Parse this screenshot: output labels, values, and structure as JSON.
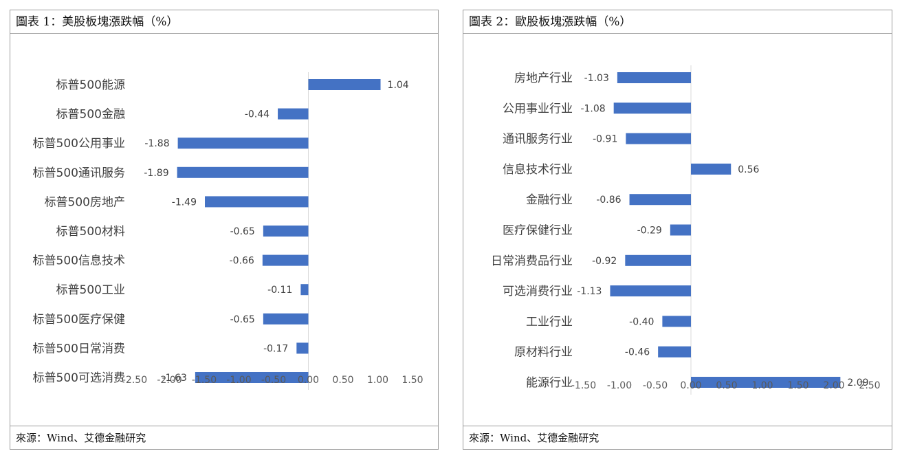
{
  "charts": [
    {
      "title": "圖表 1：美股板塊漲跌幅（%）",
      "source": "來源：Wind、艾德金融研究",
      "chart_data": {
        "type": "bar",
        "orientation": "horizontal",
        "categories": [
          "标普500能源",
          "标普500金融",
          "标普500公用事业",
          "标普500通讯服务",
          "标普500房地产",
          "标普500材料",
          "标普500信息技术",
          "标普500工业",
          "标普500医疗保健",
          "标普500日常消费",
          "标普500可选消费"
        ],
        "values": [
          1.04,
          -0.44,
          -1.88,
          -1.89,
          -1.49,
          -0.65,
          -0.66,
          -0.11,
          -0.65,
          -0.17,
          -1.63
        ],
        "value_labels": [
          "1.04",
          "-0.44",
          "-1.88",
          "-1.89",
          "-1.49",
          "-0.65",
          "-0.66",
          "-0.11",
          "-0.65",
          "-0.17",
          "-1.63"
        ],
        "xlim": [
          -2.5,
          1.5
        ],
        "x_ticks": [
          "-2.50",
          "-2.00",
          "-1.50",
          "-1.00",
          "-0.50",
          "0.00",
          "0.50",
          "1.00",
          "1.50"
        ],
        "grid": false,
        "bar_color": "#4472C4"
      }
    },
    {
      "title": "圖表 2：歐股板塊漲跌幅（%）",
      "source": "來源：Wind、艾德金融研究",
      "chart_data": {
        "type": "bar",
        "orientation": "horizontal",
        "categories": [
          "房地产行业",
          "公用事业行业",
          "通讯服务行业",
          "信息技术行业",
          "金融行业",
          "医疗保健行业",
          "日常消费品行业",
          "可选消费行业",
          "工业行业",
          "原材料行业",
          "能源行业"
        ],
        "values": [
          -1.03,
          -1.08,
          -0.91,
          0.56,
          -0.86,
          -0.29,
          -0.92,
          -1.13,
          -0.4,
          -0.46,
          2.09
        ],
        "value_labels": [
          "-1.03",
          "-1.08",
          "-0.91",
          "0.56",
          "-0.86",
          "-0.29",
          "-0.92",
          "-1.13",
          "-0.40",
          "-0.46",
          "2.09"
        ],
        "xlim": [
          -1.5,
          2.5
        ],
        "x_ticks": [
          "-1.50",
          "-1.00",
          "-0.50",
          "0.00",
          "0.50",
          "1.00",
          "1.50",
          "2.00",
          "2.50"
        ],
        "grid": false,
        "bar_color": "#4472C4"
      }
    }
  ]
}
